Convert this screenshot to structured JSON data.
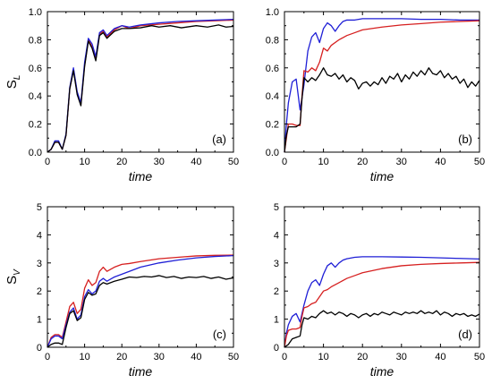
{
  "chart_data": [
    {
      "type": "line",
      "panel_label": "(a)",
      "xlabel": "time",
      "ylabel": "S",
      "ylabel_sub": "L",
      "xlim": [
        0,
        50
      ],
      "ylim": [
        0,
        1.0
      ],
      "xticks": [
        "0",
        "10",
        "20",
        "30",
        "40",
        "50"
      ],
      "yticks": [
        "0.0",
        "0.2",
        "0.4",
        "0.6",
        "0.8",
        "1.0"
      ],
      "series": [
        {
          "color": "#d62020",
          "x": [
            0,
            1,
            2,
            3,
            4,
            5,
            6,
            7,
            8,
            9,
            10,
            11,
            12,
            13,
            14,
            15,
            16,
            18,
            20,
            22,
            25,
            30,
            35,
            40,
            45,
            50
          ],
          "y": [
            0,
            0.02,
            0.07,
            0.07,
            0.02,
            0.12,
            0.45,
            0.59,
            0.42,
            0.34,
            0.62,
            0.8,
            0.75,
            0.66,
            0.84,
            0.86,
            0.82,
            0.87,
            0.9,
            0.88,
            0.9,
            0.91,
            0.92,
            0.93,
            0.935,
            0.94
          ]
        },
        {
          "color": "#1f1fd6",
          "x": [
            0,
            1,
            2,
            3,
            4,
            5,
            6,
            7,
            8,
            9,
            10,
            11,
            12,
            13,
            14,
            15,
            16,
            18,
            20,
            22,
            25,
            30,
            35,
            40,
            45,
            50
          ],
          "y": [
            0,
            0.02,
            0.08,
            0.08,
            0.02,
            0.13,
            0.46,
            0.6,
            0.43,
            0.35,
            0.64,
            0.81,
            0.77,
            0.68,
            0.85,
            0.87,
            0.83,
            0.88,
            0.9,
            0.89,
            0.905,
            0.92,
            0.93,
            0.935,
            0.94,
            0.945
          ]
        },
        {
          "color": "#000000",
          "x": [
            0,
            1,
            2,
            3,
            4,
            5,
            6,
            7,
            8,
            9,
            10,
            11,
            12,
            13,
            14,
            15,
            16,
            18,
            20,
            22,
            25,
            28,
            30,
            33,
            36,
            40,
            43,
            46,
            48,
            50
          ],
          "y": [
            0,
            0.02,
            0.07,
            0.07,
            0.02,
            0.12,
            0.45,
            0.58,
            0.41,
            0.33,
            0.61,
            0.79,
            0.74,
            0.65,
            0.83,
            0.85,
            0.81,
            0.86,
            0.88,
            0.88,
            0.885,
            0.9,
            0.89,
            0.9,
            0.885,
            0.9,
            0.89,
            0.905,
            0.89,
            0.895
          ]
        }
      ]
    },
    {
      "type": "line",
      "panel_label": "(b)",
      "xlabel": "time",
      "ylabel": "",
      "xlim": [
        0,
        50
      ],
      "ylim": [
        0,
        1.0
      ],
      "xticks": [
        "0",
        "10",
        "20",
        "30",
        "40",
        "50"
      ],
      "yticks": [
        "0.0",
        "0.2",
        "0.4",
        "0.6",
        "0.8",
        "1.0"
      ],
      "series": [
        {
          "color": "#1f1fd6",
          "x": [
            0,
            0.5,
            1,
            2,
            3,
            4,
            5,
            6,
            7,
            8,
            9,
            10,
            11,
            12,
            13,
            14,
            15,
            16,
            18,
            20,
            22,
            25,
            30,
            35,
            40,
            45,
            50
          ],
          "y": [
            0,
            0.2,
            0.35,
            0.5,
            0.52,
            0.3,
            0.48,
            0.72,
            0.82,
            0.85,
            0.78,
            0.88,
            0.92,
            0.9,
            0.86,
            0.9,
            0.93,
            0.94,
            0.94,
            0.95,
            0.95,
            0.95,
            0.95,
            0.945,
            0.945,
            0.94,
            0.94
          ]
        },
        {
          "color": "#d62020",
          "x": [
            0,
            0.5,
            1,
            2,
            3,
            4,
            4.5,
            5,
            6,
            7,
            8,
            9,
            10,
            11,
            12,
            14,
            16,
            18,
            20,
            25,
            30,
            35,
            40,
            45,
            50
          ],
          "y": [
            0,
            0.1,
            0.2,
            0.2,
            0.19,
            0.19,
            0.4,
            0.58,
            0.57,
            0.6,
            0.58,
            0.64,
            0.74,
            0.72,
            0.76,
            0.8,
            0.83,
            0.85,
            0.87,
            0.89,
            0.905,
            0.915,
            0.925,
            0.93,
            0.935
          ]
        },
        {
          "color": "#000000",
          "x": [
            0,
            0.5,
            1,
            2,
            3,
            4,
            4.5,
            5,
            6,
            7,
            8,
            9,
            10,
            11,
            12,
            13,
            14,
            15,
            16,
            17,
            18,
            19,
            20,
            21,
            22,
            23,
            24,
            25,
            26,
            27,
            28,
            29,
            30,
            31,
            32,
            33,
            34,
            35,
            36,
            37,
            38,
            39,
            40,
            41,
            42,
            43,
            44,
            45,
            46,
            47,
            48,
            49,
            50
          ],
          "y": [
            0,
            0.12,
            0.18,
            0.18,
            0.18,
            0.2,
            0.38,
            0.53,
            0.5,
            0.53,
            0.51,
            0.55,
            0.6,
            0.55,
            0.54,
            0.56,
            0.52,
            0.55,
            0.5,
            0.53,
            0.51,
            0.45,
            0.49,
            0.5,
            0.47,
            0.5,
            0.48,
            0.53,
            0.49,
            0.54,
            0.52,
            0.56,
            0.5,
            0.55,
            0.52,
            0.57,
            0.54,
            0.58,
            0.55,
            0.6,
            0.56,
            0.55,
            0.58,
            0.53,
            0.56,
            0.52,
            0.54,
            0.49,
            0.52,
            0.46,
            0.5,
            0.47,
            0.51
          ]
        }
      ]
    },
    {
      "type": "line",
      "panel_label": "(c)",
      "xlabel": "time",
      "ylabel": "S",
      "ylabel_sub": "V",
      "xlim": [
        0,
        50
      ],
      "ylim": [
        0,
        5
      ],
      "xticks": [
        "0",
        "10",
        "20",
        "30",
        "40",
        "50"
      ],
      "yticks": [
        "0",
        "1",
        "2",
        "3",
        "4",
        "5"
      ],
      "series": [
        {
          "color": "#d62020",
          "x": [
            0,
            1,
            2,
            3,
            4,
            5,
            6,
            7,
            8,
            9,
            10,
            11,
            12,
            13,
            14,
            15,
            16,
            18,
            20,
            22,
            25,
            30,
            35,
            40,
            45,
            50
          ],
          "y": [
            0,
            0.35,
            0.45,
            0.45,
            0.35,
            0.9,
            1.45,
            1.6,
            1.2,
            1.35,
            2.1,
            2.4,
            2.2,
            2.3,
            2.7,
            2.85,
            2.7,
            2.85,
            2.95,
            2.98,
            3.05,
            3.15,
            3.2,
            3.25,
            3.27,
            3.28
          ]
        },
        {
          "color": "#1f1fd6",
          "x": [
            0,
            1,
            2,
            3,
            4,
            5,
            6,
            7,
            8,
            9,
            10,
            11,
            12,
            13,
            14,
            15,
            16,
            18,
            20,
            22,
            25,
            30,
            35,
            40,
            45,
            50
          ],
          "y": [
            0,
            0.3,
            0.4,
            0.4,
            0.3,
            0.8,
            1.25,
            1.4,
            1.0,
            1.15,
            1.8,
            2.05,
            1.9,
            2.0,
            2.35,
            2.45,
            2.35,
            2.5,
            2.6,
            2.7,
            2.85,
            3.0,
            3.1,
            3.18,
            3.23,
            3.26
          ]
        },
        {
          "color": "#000000",
          "x": [
            0,
            1,
            2,
            3,
            4,
            5,
            6,
            7,
            8,
            9,
            10,
            11,
            12,
            13,
            14,
            15,
            16,
            18,
            20,
            22,
            24,
            26,
            28,
            30,
            32,
            34,
            36,
            38,
            40,
            42,
            44,
            46,
            48,
            50
          ],
          "y": [
            0,
            0.1,
            0.15,
            0.15,
            0.1,
            0.7,
            1.2,
            1.3,
            0.95,
            1.05,
            1.7,
            1.95,
            1.85,
            1.9,
            2.2,
            2.3,
            2.25,
            2.35,
            2.42,
            2.5,
            2.48,
            2.52,
            2.5,
            2.55,
            2.48,
            2.52,
            2.45,
            2.5,
            2.48,
            2.52,
            2.45,
            2.5,
            2.42,
            2.47
          ]
        }
      ]
    },
    {
      "type": "line",
      "panel_label": "(d)",
      "xlabel": "time",
      "ylabel": "",
      "xlim": [
        0,
        50
      ],
      "ylim": [
        0,
        5
      ],
      "xticks": [
        "0",
        "10",
        "20",
        "30",
        "40",
        "50"
      ],
      "yticks": [
        "0",
        "1",
        "2",
        "3",
        "4",
        "5"
      ],
      "series": [
        {
          "color": "#1f1fd6",
          "x": [
            0,
            0.5,
            1,
            2,
            3,
            4,
            5,
            6,
            7,
            8,
            9,
            10,
            11,
            12,
            13,
            14,
            15,
            16,
            18,
            20,
            22,
            25,
            30,
            35,
            40,
            45,
            50
          ],
          "y": [
            0,
            0.5,
            0.8,
            1.1,
            1.2,
            0.9,
            1.5,
            2.0,
            2.3,
            2.4,
            2.2,
            2.6,
            2.9,
            3.0,
            2.85,
            3.0,
            3.1,
            3.15,
            3.2,
            3.22,
            3.22,
            3.22,
            3.21,
            3.2,
            3.18,
            3.16,
            3.14
          ]
        },
        {
          "color": "#d62020",
          "x": [
            0,
            0.5,
            1,
            2,
            3,
            4,
            4.5,
            5,
            6,
            7,
            8,
            9,
            10,
            11,
            12,
            14,
            16,
            18,
            20,
            25,
            30,
            35,
            40,
            45,
            50
          ],
          "y": [
            0,
            0.4,
            0.6,
            0.65,
            0.65,
            0.7,
            1.1,
            1.4,
            1.45,
            1.55,
            1.6,
            1.8,
            2.0,
            2.05,
            2.15,
            2.3,
            2.45,
            2.55,
            2.65,
            2.8,
            2.9,
            2.95,
            2.98,
            3.0,
            3.02
          ]
        },
        {
          "color": "#000000",
          "x": [
            0,
            0.5,
            1,
            2,
            3,
            4,
            4.5,
            5,
            6,
            7,
            8,
            9,
            10,
            11,
            12,
            13,
            14,
            15,
            16,
            17,
            18,
            19,
            20,
            21,
            22,
            23,
            24,
            25,
            26,
            27,
            28,
            29,
            30,
            31,
            32,
            33,
            34,
            35,
            36,
            37,
            38,
            39,
            40,
            41,
            42,
            43,
            44,
            45,
            46,
            47,
            48,
            49,
            50
          ],
          "y": [
            0,
            0.05,
            0.1,
            0.3,
            0.35,
            0.4,
            0.8,
            1.05,
            1.0,
            1.1,
            1.05,
            1.2,
            1.3,
            1.2,
            1.25,
            1.15,
            1.25,
            1.2,
            1.1,
            1.2,
            1.15,
            1.05,
            1.15,
            1.2,
            1.1,
            1.2,
            1.15,
            1.25,
            1.2,
            1.15,
            1.25,
            1.2,
            1.15,
            1.25,
            1.2,
            1.25,
            1.2,
            1.3,
            1.2,
            1.25,
            1.2,
            1.3,
            1.15,
            1.25,
            1.2,
            1.1,
            1.2,
            1.15,
            1.2,
            1.1,
            1.15,
            1.1,
            1.18
          ]
        }
      ]
    }
  ]
}
